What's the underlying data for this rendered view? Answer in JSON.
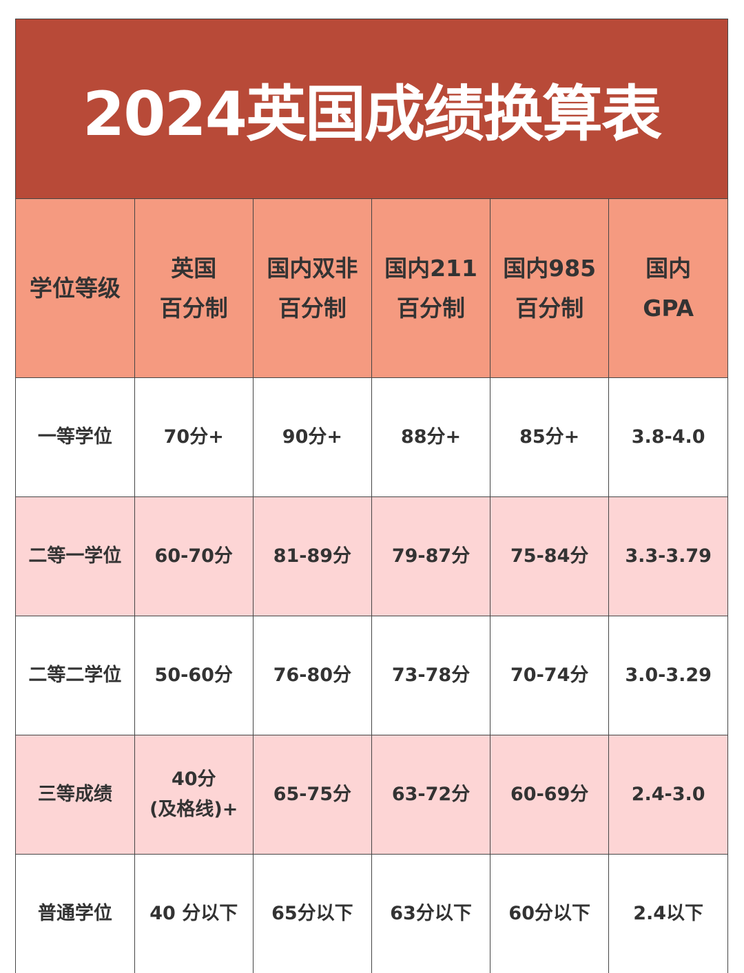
{
  "title": "2024英国成绩换算表",
  "colors": {
    "title_bg": "#b84a38",
    "header_bg": "#f59a80",
    "alt_row_bg": "#fdd5d5",
    "text": "#333333"
  },
  "headers": [
    [
      "学位等级"
    ],
    [
      "英国",
      "百分制"
    ],
    [
      "国内双非",
      "百分制"
    ],
    [
      "国内211",
      "百分制"
    ],
    [
      "国内985",
      "百分制"
    ],
    [
      "国内",
      "GPA"
    ]
  ],
  "rows": [
    {
      "cells": [
        [
          "一等学位"
        ],
        [
          "70分+"
        ],
        [
          "90分+"
        ],
        [
          "88分+"
        ],
        [
          "85分+"
        ],
        [
          "3.8-4.0"
        ]
      ]
    },
    {
      "cells": [
        [
          "二等一学位"
        ],
        [
          "60-70分"
        ],
        [
          "81-89分"
        ],
        [
          "79-87分"
        ],
        [
          "75-84分"
        ],
        [
          "3.3-3.79"
        ]
      ]
    },
    {
      "cells": [
        [
          "二等二学位"
        ],
        [
          "50-60分"
        ],
        [
          "76-80分"
        ],
        [
          "73-78分"
        ],
        [
          "70-74分"
        ],
        [
          "3.0-3.29"
        ]
      ]
    },
    {
      "cells": [
        [
          "三等成绩"
        ],
        [
          "40分",
          "(及格线)+"
        ],
        [
          "65-75分"
        ],
        [
          "63-72分"
        ],
        [
          "60-69分"
        ],
        [
          "2.4-3.0"
        ]
      ]
    },
    {
      "cells": [
        [
          "普通学位"
        ],
        [
          "40 分以下"
        ],
        [
          "65分以下"
        ],
        [
          "63分以下"
        ],
        [
          "60分以下"
        ],
        [
          "2.4以下"
        ]
      ]
    }
  ]
}
